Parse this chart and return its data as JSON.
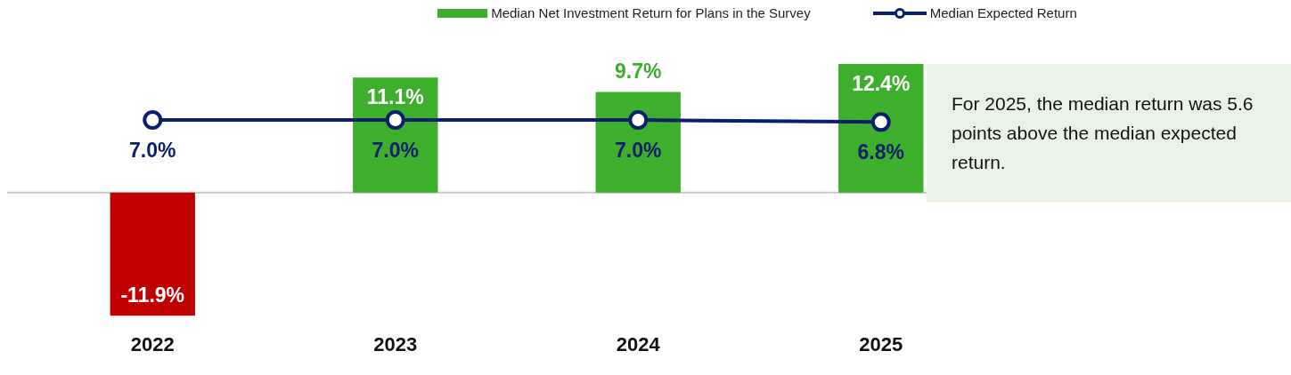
{
  "chart_data": {
    "type": "bar",
    "categories": [
      "2022",
      "2023",
      "2024",
      "2025"
    ],
    "series": [
      {
        "name": "Median Net Investment Return for Plans in the Survey",
        "colors": [
          "#c00000",
          "#3daf2c",
          "#3daf2c",
          "#3daf2c"
        ],
        "color": "#3daf2c",
        "values": [
          -11.9,
          11.1,
          9.7,
          12.4
        ],
        "value_labels": [
          "-11.9%",
          "11.1%",
          "9.7%",
          "12.4%"
        ]
      },
      {
        "name": "Median Expected Return",
        "type": "line",
        "color": "#0a1f6b",
        "values": [
          7.0,
          7.0,
          7.0,
          6.8
        ],
        "value_labels": [
          "7.0%",
          "7.0%",
          "7.0%",
          "6.8%"
        ]
      }
    ],
    "tick_labels": "x",
    "grid": false,
    "legend": "top",
    "marker": "circle",
    "annotations": [
      "For 2025, the median return was 5.6 points above the median expected return."
    ]
  }
}
